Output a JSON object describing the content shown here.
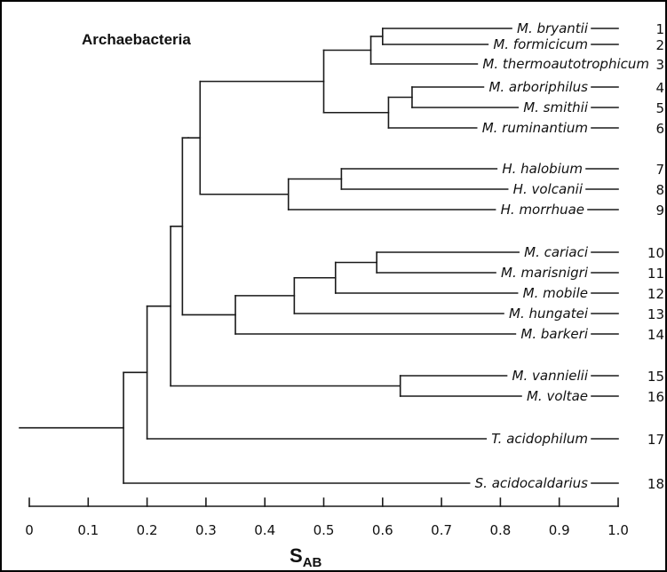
{
  "title": "Archaebacteria",
  "axis": {
    "label_main": "S",
    "label_sub": "AB",
    "range": [
      0,
      1.0
    ],
    "tick_values": [
      0,
      0.1,
      0.2,
      0.3,
      0.4,
      0.5,
      0.6,
      0.7,
      0.8,
      0.9,
      1.0
    ],
    "tick_labels": [
      "0",
      "0.1",
      "0.2",
      "0.3",
      "0.4",
      "0.5",
      "0.6",
      "0.7",
      "0.8",
      "0.9",
      "1.0"
    ]
  },
  "taxa": [
    {
      "name": "M. bryantii",
      "num": "1"
    },
    {
      "name": "M. formicicum",
      "num": "2"
    },
    {
      "name": "M. thermoautotrophicum",
      "num": "3"
    },
    {
      "name": "M. arboriphilus",
      "num": "4"
    },
    {
      "name": "M. smithii",
      "num": "5"
    },
    {
      "name": "M. ruminantium",
      "num": "6"
    },
    {
      "name": "H. halobium",
      "num": "7"
    },
    {
      "name": "H. volcanii",
      "num": "8"
    },
    {
      "name": "H. morrhuae",
      "num": "9"
    },
    {
      "name": "M. cariaci",
      "num": "10"
    },
    {
      "name": "M. marisnigri",
      "num": "11"
    },
    {
      "name": "M. mobile",
      "num": "12"
    },
    {
      "name": "M. hungatei",
      "num": "13"
    },
    {
      "name": "M. barkeri",
      "num": "14"
    },
    {
      "name": "M. vannielii",
      "num": "15"
    },
    {
      "name": "M. voltae",
      "num": "16"
    },
    {
      "name": "T. acidophilum",
      "num": "17"
    },
    {
      "name": "S. acidocaldarius",
      "num": "18"
    }
  ],
  "tree": {
    "s": 0.16,
    "c": [
      {
        "s": 0.2,
        "c": [
          {
            "s": 0.24,
            "c": [
              {
                "s": 0.26,
                "c": [
                  {
                    "s": 0.27,
                    "c": [
                      {
                        "s": 0.29,
                        "c": [
                          {
                            "s": 0.5,
                            "c": [
                              {
                                "s": 0.58,
                                "c": [
                                  {
                                    "s": 0.6,
                                    "c": [
                                      {
                                        "leaf": 0
                                      },
                                      {
                                        "leaf": 1
                                      }
                                    ]
                                  },
                                  {
                                    "leaf": 2
                                  }
                                ]
                              },
                              {
                                "s": 0.61,
                                "c": [
                                  {
                                    "s": 0.65,
                                    "c": [
                                      {
                                        "leaf": 3
                                      },
                                      {
                                        "leaf": 4
                                      }
                                    ]
                                  },
                                  {
                                    "leaf": 5
                                  }
                                ]
                              }
                            ]
                          },
                          {
                            "s": 0.44,
                            "c": [
                              {
                                "s": 0.53,
                                "c": [
                                  {
                                    "leaf": 6
                                  },
                                  {
                                    "leaf": 7
                                  }
                                ]
                              },
                              {
                                "leaf": 8
                              }
                            ]
                          }
                        ]
                      }
                    ]
                  },
                  {
                    "s": 0.35,
                    "c": [
                      {
                        "s": 0.45,
                        "c": [
                          {
                            "s": 0.52,
                            "c": [
                              {
                                "s": 0.59,
                                "c": [
                                  {
                                    "leaf": 9
                                  },
                                  {
                                    "leaf": 10
                                  }
                                ]
                              },
                              {
                                "leaf": 11
                              }
                            ]
                          },
                          {
                            "leaf": 12
                          }
                        ]
                      },
                      {
                        "leaf": 13
                      }
                    ]
                  }
                ]
              },
              {
                "s": 0.63,
                "c": [
                  {
                    "leaf": 14
                  },
                  {
                    "leaf": 15
                  }
                ]
              }
            ]
          },
          {
            "leaf": 16
          }
        ]
      },
      {
        "leaf": 17
      }
    ]
  }
}
